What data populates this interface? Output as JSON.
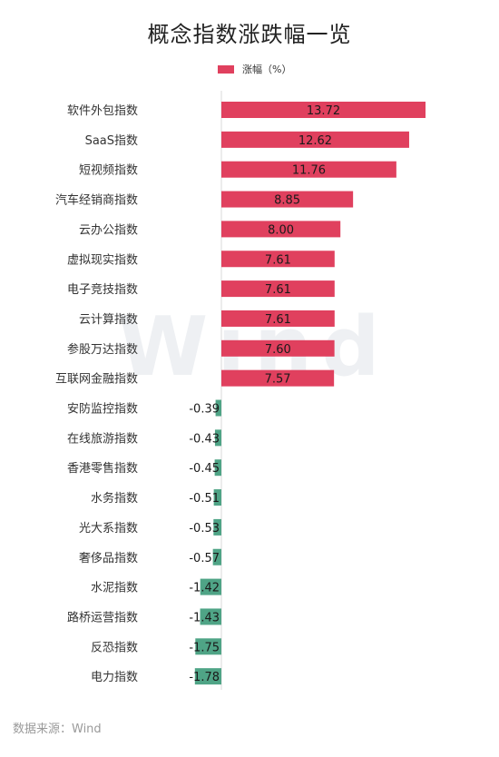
{
  "title": "概念指数涨跌幅一览",
  "source": "数据来源：Wind",
  "watermark": "Wind",
  "colors": {
    "positive": "#e0405e",
    "negative": "#4fa486",
    "axis": "#d8d8d8"
  },
  "chart_data": {
    "type": "bar",
    "orientation": "horizontal",
    "title": "概念指数涨跌幅一览",
    "legend_position": "top",
    "categories": [
      "软件外包指数",
      "SaaS指数",
      "短视频指数",
      "汽车经销商指数",
      "云办公指数",
      "虚拟现实指数",
      "电子竞技指数",
      "云计算指数",
      "参股万达指数",
      "互联网金融指数",
      "安防监控指数",
      "在线旅游指数",
      "香港零售指数",
      "水务指数",
      "光大系指数",
      "奢侈品指数",
      "水泥指数",
      "路桥运营指数",
      "反恐指数",
      "电力指数"
    ],
    "series": [
      {
        "name": "涨幅（%）",
        "values": [
          13.72,
          12.62,
          11.76,
          8.85,
          8.0,
          7.61,
          7.61,
          7.61,
          7.6,
          7.57,
          -0.39,
          -0.43,
          -0.45,
          -0.51,
          -0.53,
          -0.57,
          -1.42,
          -1.43,
          -1.75,
          -1.78
        ],
        "labels": [
          "13.72",
          "12.62",
          "11.76",
          "8.85",
          "8.00",
          "7.61",
          "7.61",
          "7.61",
          "7.60",
          "7.57",
          "-0.39",
          "-0.43",
          "-0.45",
          "-0.51",
          "-0.53",
          "-0.57",
          "-1.42",
          "-1.43",
          "-1.75",
          "-1.78"
        ]
      }
    ],
    "grid": false
  }
}
